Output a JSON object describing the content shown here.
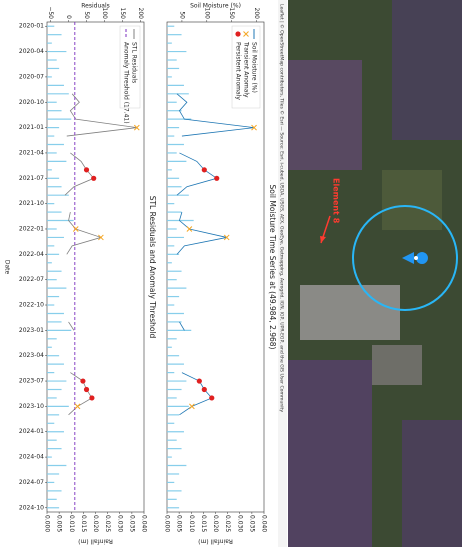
{
  "map": {
    "label": "Element 8",
    "attribution": "Leaflet | © OpenStreetMap contributors, Tiles © Esri — Source: Esri, i-cubed, USDA, USGS, AEX, GeoEye, Getmapping, Aerogrid, IGN, IGP, UPR-EGP, and the GIS User Community"
  },
  "chart_data": [
    {
      "type": "line",
      "title": "Soil Moisture Time Series at (49.984, 2.968)",
      "ylabel": "Soil Moisture (%)",
      "y2label": "Rainfall (m)",
      "categories": [
        "2020-01",
        "2020-02",
        "2020-03",
        "2020-04",
        "2020-05",
        "2020-06",
        "2020-07",
        "2020-08",
        "2020-09",
        "2020-10",
        "2020-11",
        "2020-12",
        "2021-01",
        "2021-02",
        "2021-03",
        "2021-04",
        "2021-05",
        "2021-06",
        "2021-07",
        "2021-08",
        "2021-09",
        "2021-10",
        "2021-11",
        "2021-12",
        "2022-01",
        "2022-02",
        "2022-03",
        "2022-04",
        "2022-05",
        "2022-06",
        "2022-07",
        "2022-08",
        "2022-09",
        "2022-10",
        "2022-11",
        "2022-12",
        "2023-01",
        "2023-02",
        "2023-03",
        "2023-04",
        "2023-05",
        "2023-06",
        "2023-07",
        "2023-08",
        "2023-09",
        "2023-10",
        "2023-11",
        "2023-12",
        "2024-01",
        "2024-02",
        "2024-03",
        "2024-04",
        "2024-05",
        "2024-06",
        "2024-07",
        "2024-08",
        "2024-09",
        "2024-10"
      ],
      "series": [
        {
          "name": "Soil Moisture (%)",
          "type": "line",
          "color": "#1f77b4",
          "values": [
            null,
            null,
            null,
            null,
            null,
            null,
            null,
            null,
            40,
            60,
            45,
            55,
            195,
            50,
            null,
            45,
            80,
            95,
            120,
            60,
            40,
            null,
            50,
            45,
            65,
            140,
            55,
            40,
            null,
            null,
            null,
            null,
            null,
            null,
            null,
            45,
            55,
            null,
            null,
            null,
            null,
            50,
            85,
            95,
            110,
            70,
            45,
            null,
            null,
            null,
            null,
            null,
            null,
            null,
            null,
            null,
            null,
            null
          ]
        },
        {
          "name": "Transient Anomaly",
          "type": "scatter",
          "marker": "x",
          "color": "#f5a623",
          "x": [
            "2021-01",
            "2022-01",
            "2022-02",
            "2023-10"
          ],
          "values": [
            195,
            65,
            140,
            70
          ]
        },
        {
          "name": "Persistent Anomaly",
          "type": "scatter",
          "marker": "o",
          "color": "#e02020",
          "x": [
            "2021-06",
            "2021-07",
            "2023-07",
            "2023-08",
            "2023-09"
          ],
          "values": [
            95,
            120,
            85,
            95,
            110
          ]
        }
      ],
      "rainfall_color": "#87ceeb",
      "rainfall_values": [
        0.003,
        0.006,
        0.002,
        0.008,
        0.004,
        0.005,
        0.002,
        0.007,
        0.009,
        0.004,
        0.006,
        0.01,
        0.005,
        0.003,
        0.007,
        0.004,
        0.008,
        0.002,
        0.005,
        0.006,
        0.009,
        0.003,
        0.006,
        0.011,
        0.004,
        0.007,
        0.003,
        0.005,
        0.002,
        0.006,
        0.004,
        0.008,
        0.005,
        0.003,
        0.007,
        0.006,
        0.01,
        0.004,
        0.002,
        0.005,
        0.007,
        0.003,
        0.008,
        0.006,
        0.004,
        0.009,
        0.005,
        0.003,
        0.007,
        0.004,
        0.006,
        0.002,
        0.008,
        0.005,
        0.003,
        0.006,
        0.004,
        0.005
      ],
      "ylim": [
        20,
        215
      ],
      "yticks": [
        50,
        100,
        150,
        200
      ],
      "y2lim": [
        0,
        0.04
      ],
      "y2ticks": [
        {
          "value": 0,
          "label": "0.000"
        },
        {
          "value": 0.005,
          "label": "0.005"
        },
        {
          "value": 0.01,
          "label": "0.010"
        },
        {
          "value": 0.015,
          "label": "0.015"
        },
        {
          "value": 0.02,
          "label": "0.020"
        },
        {
          "value": 0.025,
          "label": "0.025"
        },
        {
          "value": 0.03,
          "label": "0.030"
        },
        {
          "value": 0.035,
          "label": "0.035"
        },
        {
          "value": 0.04,
          "label": "0.040"
        }
      ],
      "legend": "upper left"
    },
    {
      "type": "line",
      "title": "STL Residuals and Anomaly Threshold",
      "ylabel": "Residuals",
      "y2label": "Rainfall (m)",
      "xlabel": "Date",
      "categories": [
        "2020-01",
        "2020-02",
        "2020-03",
        "2020-04",
        "2020-05",
        "2020-06",
        "2020-07",
        "2020-08",
        "2020-09",
        "2020-10",
        "2020-11",
        "2020-12",
        "2021-01",
        "2021-02",
        "2021-03",
        "2021-04",
        "2021-05",
        "2021-06",
        "2021-07",
        "2021-08",
        "2021-09",
        "2021-10",
        "2021-11",
        "2021-12",
        "2022-01",
        "2022-02",
        "2022-03",
        "2022-04",
        "2022-05",
        "2022-06",
        "2022-07",
        "2022-08",
        "2022-09",
        "2022-10",
        "2022-11",
        "2022-12",
        "2023-01",
        "2023-02",
        "2023-03",
        "2023-04",
        "2023-05",
        "2023-06",
        "2023-07",
        "2023-08",
        "2023-09",
        "2023-10",
        "2023-11",
        "2023-12",
        "2024-01",
        "2024-02",
        "2024-03",
        "2024-04",
        "2024-05",
        "2024-06",
        "2024-07",
        "2024-08",
        "2024-09",
        "2024-10"
      ],
      "series": [
        {
          "name": "STL Residuals",
          "type": "line",
          "color": "#808080",
          "values": [
            null,
            null,
            null,
            null,
            null,
            null,
            null,
            null,
            10,
            30,
            5,
            20,
            190,
            -5,
            null,
            5,
            35,
            50,
            70,
            15,
            -10,
            null,
            5,
            0,
            20,
            90,
            10,
            -5,
            null,
            null,
            null,
            null,
            null,
            null,
            null,
            0,
            15,
            null,
            null,
            null,
            null,
            5,
            40,
            50,
            65,
            25,
            0,
            null,
            null,
            null,
            null,
            null,
            null,
            null,
            null,
            null,
            null,
            null
          ]
        },
        {
          "name": "Anomaly Threshold (17.41)",
          "type": "hline",
          "color": "#7b2fbf",
          "dash": true,
          "value": 17.41
        }
      ],
      "anomaly_markers": [
        {
          "marker": "x",
          "color": "#f5a623",
          "x": [
            "2021-01",
            "2022-01",
            "2022-02",
            "2023-10"
          ],
          "values": [
            190,
            20,
            90,
            25
          ]
        },
        {
          "marker": "o",
          "color": "#e02020",
          "x": [
            "2021-06",
            "2021-07",
            "2023-07",
            "2023-08",
            "2023-09"
          ],
          "values": [
            50,
            70,
            40,
            50,
            65
          ]
        }
      ],
      "rainfall_color": "#87ceeb",
      "rainfall_values": [
        0.003,
        0.006,
        0.002,
        0.008,
        0.004,
        0.005,
        0.002,
        0.007,
        0.009,
        0.004,
        0.006,
        0.01,
        0.005,
        0.003,
        0.007,
        0.004,
        0.008,
        0.002,
        0.005,
        0.006,
        0.009,
        0.003,
        0.006,
        0.011,
        0.004,
        0.007,
        0.003,
        0.005,
        0.002,
        0.006,
        0.004,
        0.008,
        0.005,
        0.003,
        0.007,
        0.006,
        0.01,
        0.004,
        0.002,
        0.005,
        0.007,
        0.003,
        0.008,
        0.006,
        0.004,
        0.009,
        0.005,
        0.003,
        0.007,
        0.004,
        0.006,
        0.002,
        0.008,
        0.005,
        0.003,
        0.006,
        0.004,
        0.005
      ],
      "ylim": [
        -60,
        210
      ],
      "yticks": [
        {
          "value": -50,
          "label": "−50"
        },
        0,
        50,
        100,
        150,
        200
      ],
      "y2lim": [
        0,
        0.04
      ],
      "y2ticks": [
        {
          "value": 0,
          "label": "0.000"
        },
        {
          "value": 0.005,
          "label": "0.005"
        },
        {
          "value": 0.01,
          "label": "0.010"
        },
        {
          "value": 0.015,
          "label": "0.015"
        },
        {
          "value": 0.02,
          "label": "0.020"
        },
        {
          "value": 0.025,
          "label": "0.025"
        },
        {
          "value": 0.03,
          "label": "0.030"
        },
        {
          "value": 0.035,
          "label": "0.035"
        },
        {
          "value": 0.04,
          "label": "0.040"
        }
      ],
      "xticks": [
        "2020-01",
        "2020-04",
        "2020-07",
        "2020-10",
        "2021-01",
        "2021-04",
        "2021-07",
        "2021-10",
        "2022-01",
        "2022-04",
        "2022-07",
        "2022-10",
        "2023-01",
        "2023-04",
        "2023-07",
        "2023-10",
        "2024-01",
        "2024-04",
        "2024-07",
        "2024-10"
      ],
      "legend": "upper left"
    }
  ]
}
